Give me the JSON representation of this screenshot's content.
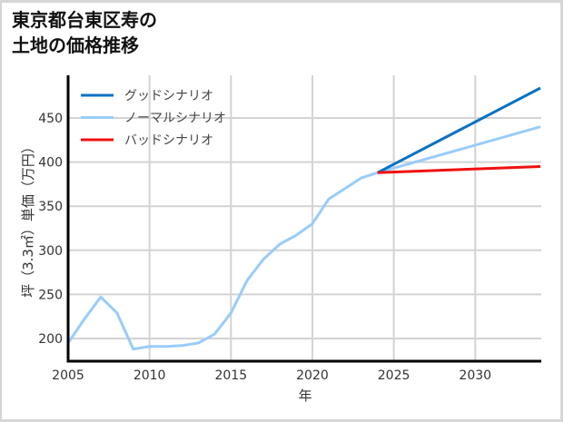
{
  "title_line1": "東京都台東区寿の",
  "title_line2": "土地の価格推移",
  "chart_data": {
    "type": "line",
    "title": "東京都台東区寿の土地の価格推移",
    "xlabel": "年",
    "ylabel": "坪（3.3㎡）単価（万円）",
    "xlim": [
      2005,
      2034
    ],
    "ylim": [
      172,
      495
    ],
    "xticks": [
      2005,
      2010,
      2015,
      2020,
      2025,
      2030
    ],
    "yticks": [
      200,
      250,
      300,
      350,
      400,
      450
    ],
    "grid": true,
    "legend_position": "upper left",
    "series": [
      {
        "name": "グッドシナリオ",
        "color": "#0a72c2",
        "x": [
          2024,
          2034
        ],
        "values": [
          388,
          484
        ]
      },
      {
        "name": "ノーマルシナリオ",
        "color": "#99ccfa",
        "x": [
          2005,
          2006,
          2007,
          2008,
          2009,
          2010,
          2011,
          2012,
          2013,
          2014,
          2015,
          2016,
          2017,
          2018,
          2019,
          2020,
          2021,
          2022,
          2023,
          2024,
          2034
        ],
        "values": [
          195,
          222,
          247,
          229,
          188,
          191,
          191,
          192,
          195,
          205,
          229,
          266,
          290,
          307,
          317,
          330,
          358,
          370,
          382,
          388,
          440
        ]
      },
      {
        "name": "バッドシナリオ",
        "color": "#f01010",
        "x": [
          2024,
          2034
        ],
        "values": [
          388,
          395
        ]
      }
    ]
  }
}
